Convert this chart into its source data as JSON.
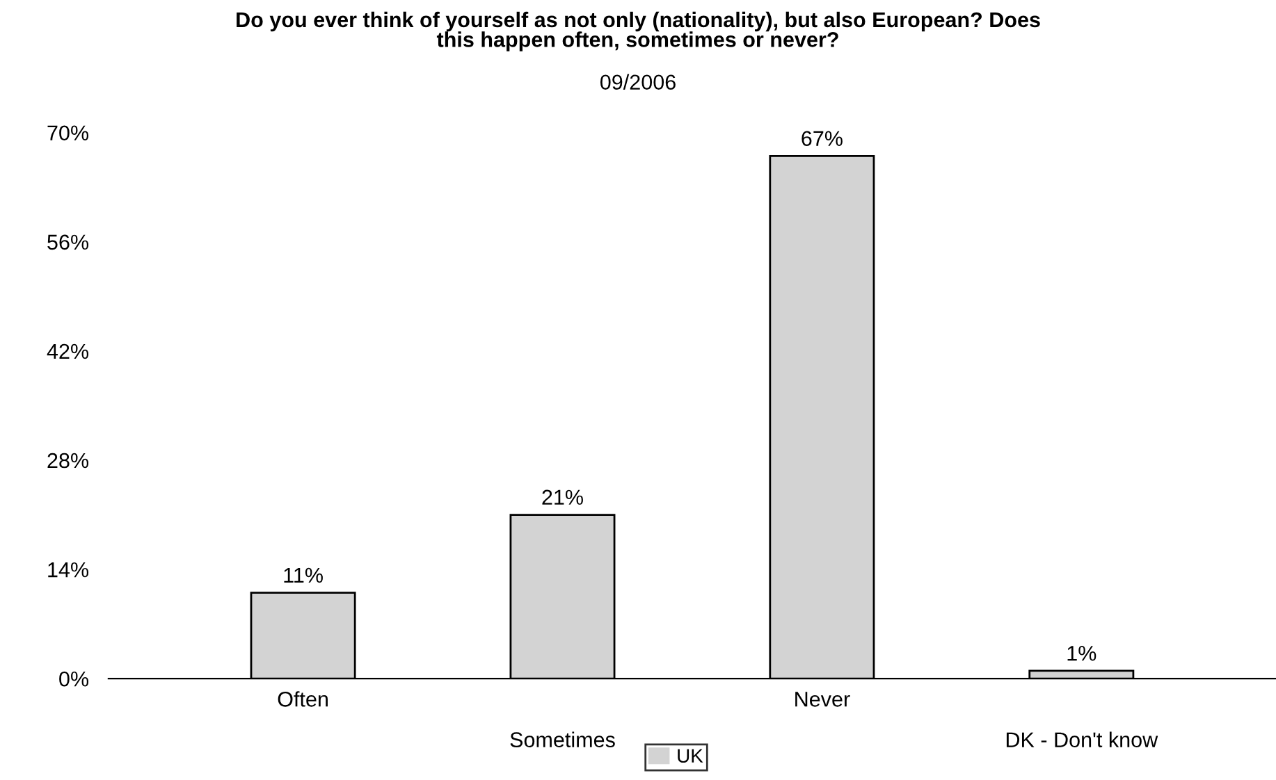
{
  "chart_data": {
    "type": "bar",
    "title": "Do you ever think of yourself as not only (nationality), but also European? Does\nthis happen often, sometimes or never?",
    "subtitle": "09/2006",
    "categories": [
      "Often",
      "Sometimes",
      "Never",
      "DK - Don't know"
    ],
    "series": [
      {
        "name": "UK",
        "color": "#d3d3d3",
        "values": [
          11,
          21,
          67,
          1
        ],
        "value_labels": [
          "11%",
          "21%",
          "67%",
          "1%"
        ]
      }
    ],
    "ylim": [
      0,
      70
    ],
    "yticks": [
      {
        "value": 0,
        "label": "0%"
      },
      {
        "value": 14,
        "label": "14%"
      },
      {
        "value": 28,
        "label": "28%"
      },
      {
        "value": 42,
        "label": "42%"
      },
      {
        "value": 56,
        "label": "56%"
      },
      {
        "value": 70,
        "label": "70%"
      }
    ],
    "grid": false,
    "legend": "bottom"
  }
}
